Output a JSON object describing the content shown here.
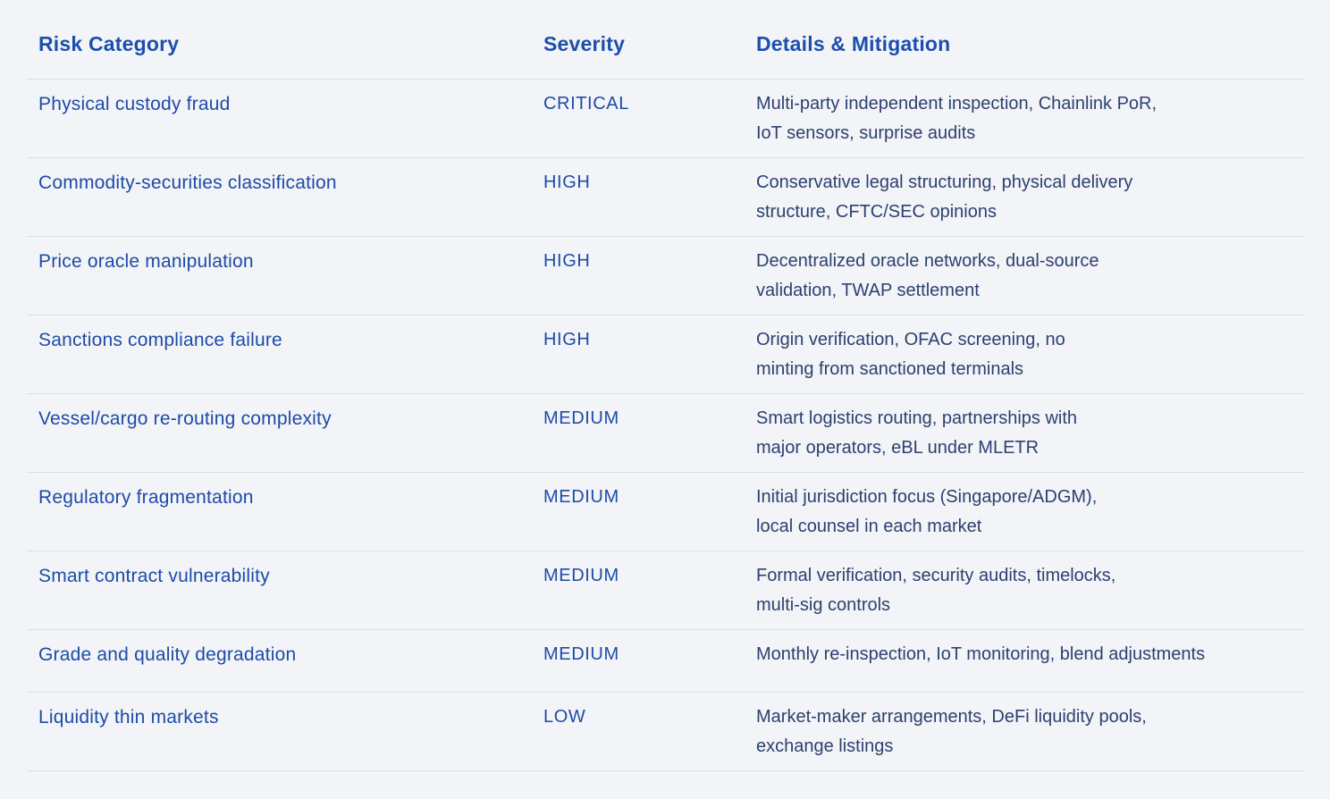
{
  "colors": {
    "bg": "#f3f4f7",
    "header": "#1b4fae",
    "category": "#1d4ba8",
    "severity": "#1d4ba8",
    "details": "#2c4170",
    "divider": "#d8deea"
  },
  "table": {
    "headers": [
      "Risk Category",
      "Severity",
      "Details & Mitigation"
    ],
    "rows": [
      {
        "category": "Physical custody fraud",
        "severity": "CRITICAL",
        "details": "Multi-party independent inspection, Chainlink PoR,\nIoT sensors, surprise audits"
      },
      {
        "category": "Commodity-securities classification",
        "severity": "HIGH",
        "details": "Conservative legal structuring, physical delivery\nstructure, CFTC/SEC opinions"
      },
      {
        "category": "Price oracle manipulation",
        "severity": "HIGH",
        "details": "Decentralized oracle networks,  dual-source\nvalidation, TWAP settlement"
      },
      {
        "category": "Sanctions compliance failure",
        "severity": "HIGH",
        "details": "Origin verification, OFAC screening, no\nminting from sanctioned terminals"
      },
      {
        "category": "Vessel/cargo re-routing complexity",
        "severity": "MEDIUM",
        "details": "Smart logistics routing, partnerships with\nmajor operators, eBL under MLETR"
      },
      {
        "category": "Regulatory fragmentation",
        "severity": "MEDIUM",
        "details": "Initial jurisdiction focus (Singapore/ADGM),\nlocal counsel in each market"
      },
      {
        "category": "Smart contract vulnerability",
        "severity": "MEDIUM",
        "details": "Formal verification, security audits, timelocks,\nmulti-sig controls"
      },
      {
        "category": "Grade and quality degradation",
        "severity": "MEDIUM",
        "details": "Monthly re-inspection, IoT monitoring, blend adjustments"
      },
      {
        "category": "Liquidity thin markets",
        "severity": "LOW",
        "details": "Market-maker arrangements, DeFi liquidity pools,\nexchange listings"
      }
    ]
  }
}
